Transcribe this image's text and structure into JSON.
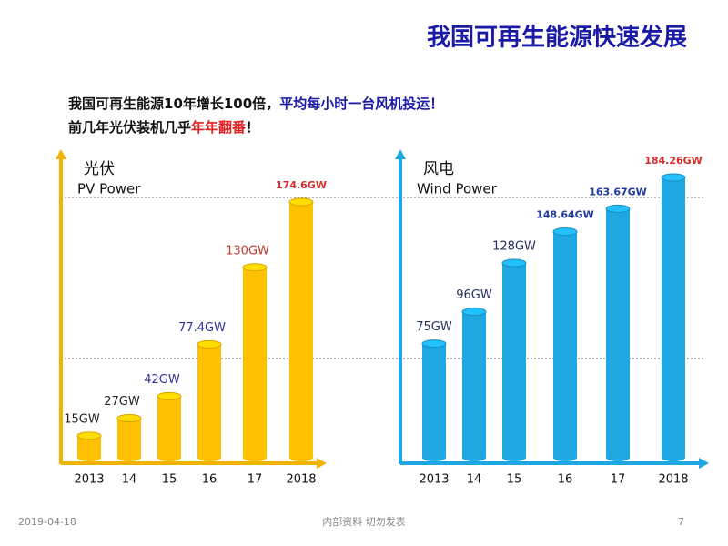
{
  "title": "我国可再生能源快速发展",
  "intro": {
    "line1": [
      "我国可再生能源10年增长100倍，",
      "平均每小时一台风机投运！"
    ],
    "line2": [
      "前几年光伏装机几乎",
      "年年翻番",
      "！"
    ]
  },
  "footer": {
    "date": "2019-04-18",
    "note": "内部资料 切勿发表",
    "page": "7"
  },
  "chart_data": [
    {
      "type": "bar",
      "title": "光伏",
      "subtitle": "PV Power",
      "color": "#ffc000",
      "categories": [
        "2013",
        "14",
        "15",
        "16",
        "17",
        "2018"
      ],
      "values": [
        15,
        27,
        42,
        77.4,
        130,
        174.6
      ],
      "value_labels": [
        "15GW",
        "27GW",
        "42GW",
        "77.4GW",
        "130GW",
        "174.6GW"
      ],
      "value_label_colors": [
        "#222222",
        "#222222",
        "#33339a",
        "#33339a",
        "#c0392b",
        "#d62b2b"
      ]
    },
    {
      "type": "bar",
      "title": "风电",
      "subtitle": "Wind Power",
      "color": "#1ea7e1",
      "categories": [
        "2013",
        "14",
        "15",
        "16",
        "17",
        "2018"
      ],
      "values": [
        75,
        96,
        128,
        148.64,
        163.67,
        184.26
      ],
      "value_labels": [
        "75GW",
        "96GW",
        "128GW",
        "148.64GW",
        "163.67GW",
        "184.26GW"
      ],
      "value_label_colors": [
        "#1f2d5a",
        "#1f2d5a",
        "#1f2d5a",
        "#1f3aa0",
        "#1f3aa0",
        "#d62b2b"
      ]
    }
  ]
}
